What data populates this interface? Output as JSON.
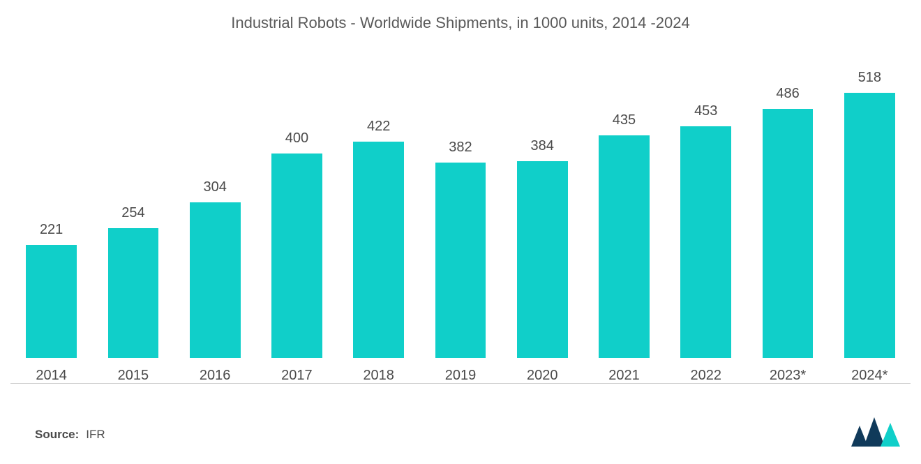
{
  "chart": {
    "type": "bar",
    "title": "Industrial Robots - Worldwide Shipments, in 1000 units, 2014 -2024",
    "title_fontsize": 22,
    "title_color": "#5a5a5a",
    "background_color": "#ffffff",
    "baseline_color": "#cfcfcf",
    "bar_color": "#10cfc9",
    "label_color": "#4a4a4a",
    "value_fontsize": 20,
    "category_fontsize": 20,
    "bar_width_ratio": 0.62,
    "y_max": 518,
    "y_min": 0,
    "categories": [
      "2014",
      "2015",
      "2016",
      "2017",
      "2018",
      "2019",
      "2020",
      "2021",
      "2022",
      "2023*",
      "2024*"
    ],
    "values": [
      221,
      254,
      304,
      400,
      422,
      382,
      384,
      435,
      453,
      486,
      518
    ]
  },
  "source": {
    "label": "Source:",
    "value": "IFR",
    "fontsize": 17
  },
  "logo": {
    "fill_dark": "#103a5a",
    "fill_accent": "#10cfc9"
  }
}
